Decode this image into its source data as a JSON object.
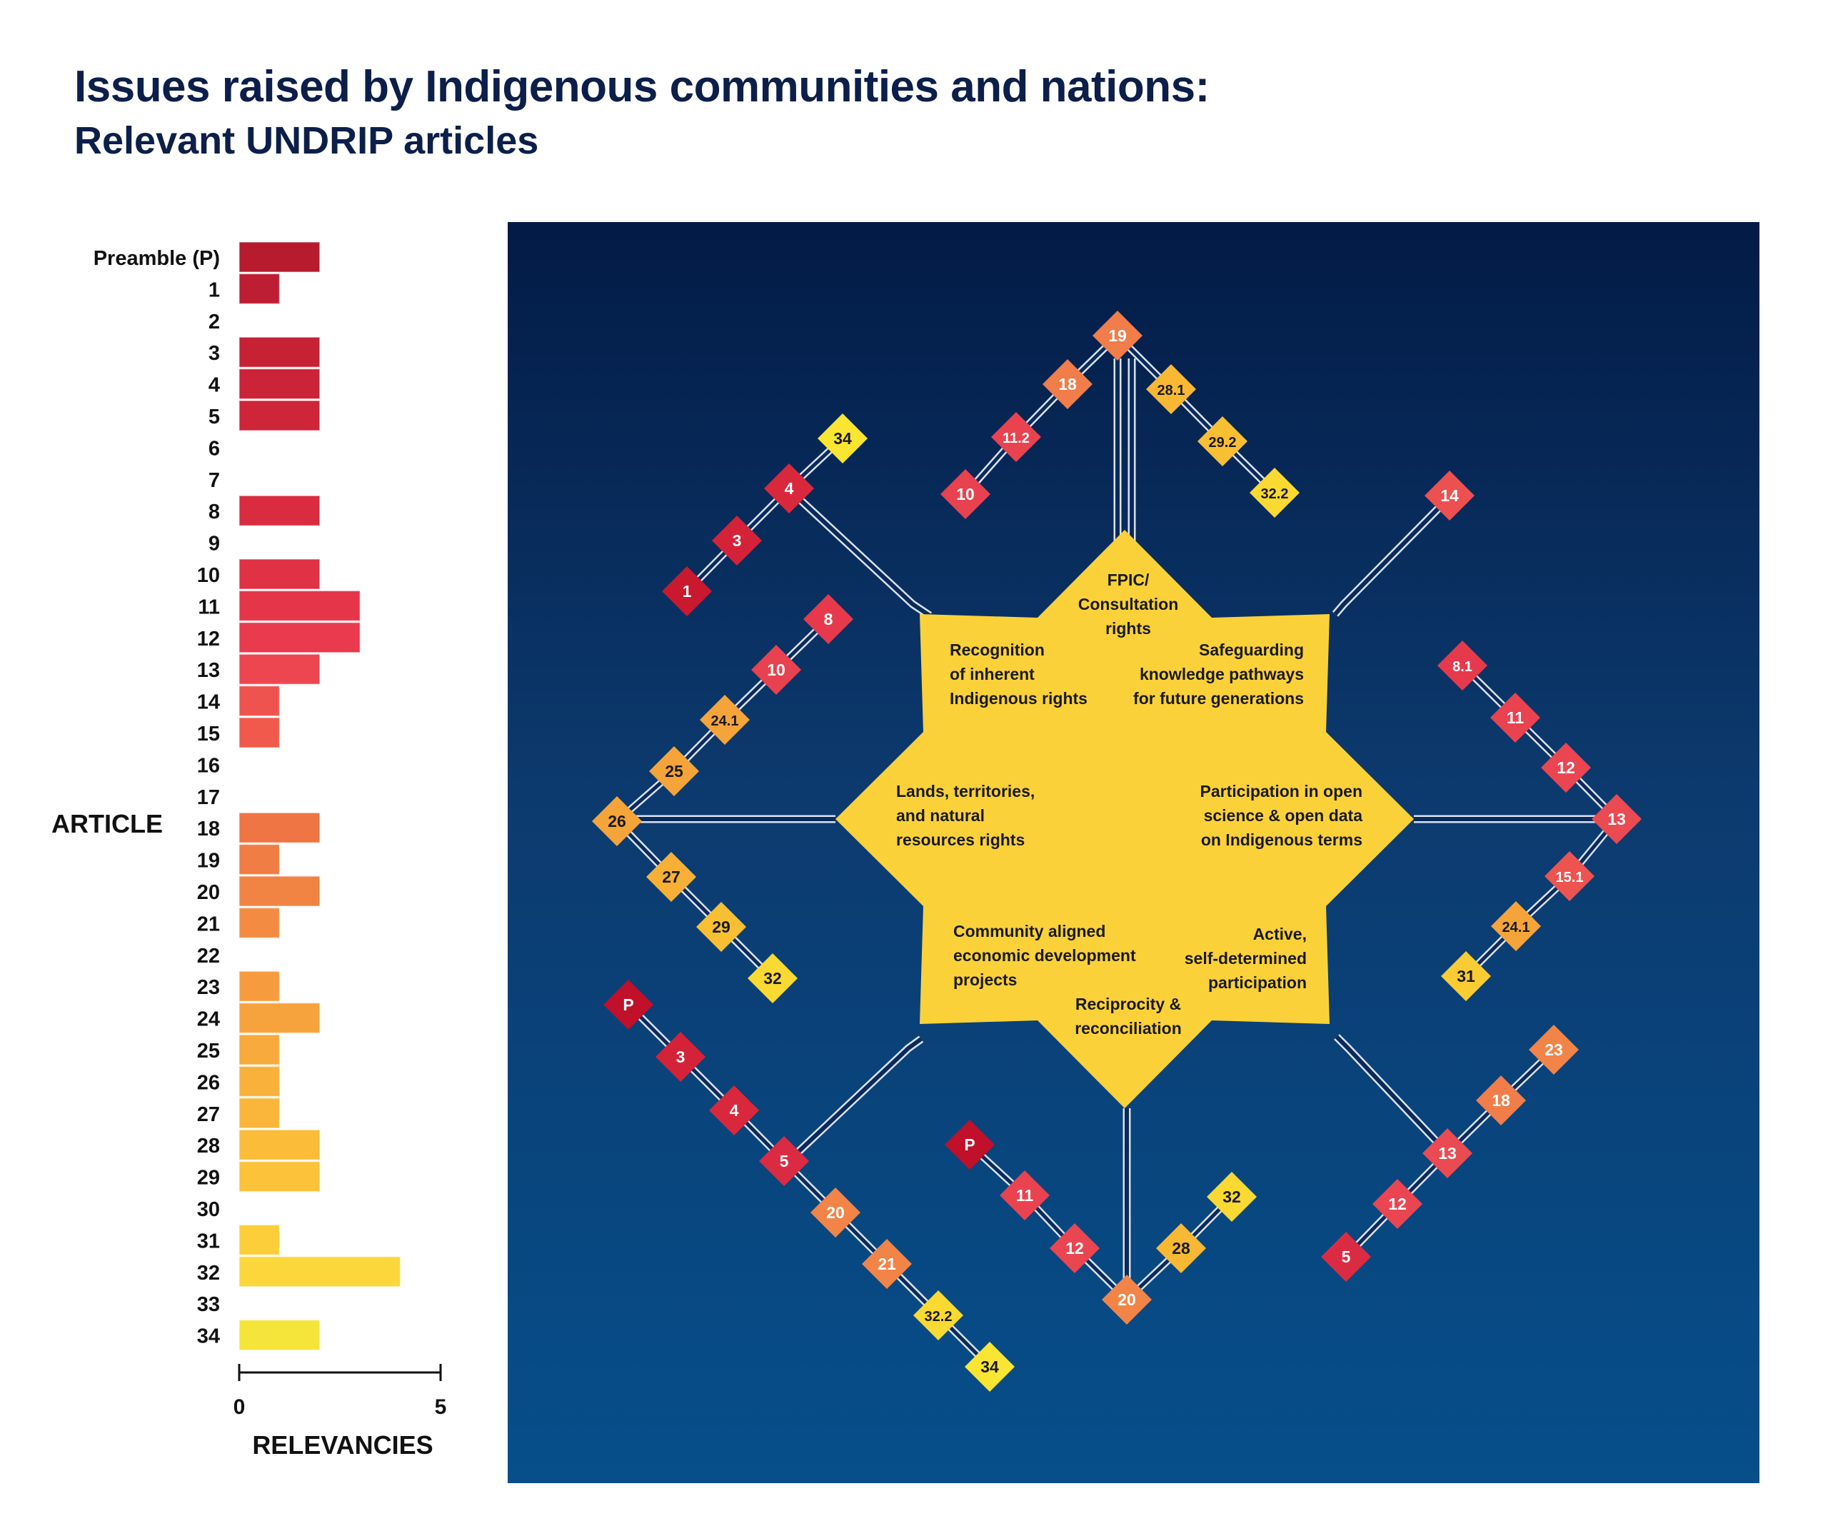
{
  "title": "Issues raised by Indigenous communities and nations:",
  "subtitle": "Relevant UNDRIP articles",
  "chart_data": [
    {
      "type": "bar",
      "orientation": "horizontal",
      "categories": [
        "Preamble (P)",
        "1",
        "2",
        "3",
        "4",
        "5",
        "6",
        "7",
        "8",
        "9",
        "10",
        "11",
        "12",
        "13",
        "14",
        "15",
        "16",
        "17",
        "18",
        "19",
        "20",
        "21",
        "22",
        "23",
        "24",
        "25",
        "26",
        "27",
        "28",
        "29",
        "30",
        "31",
        "32",
        "33",
        "34"
      ],
      "values": [
        2,
        1,
        0,
        2,
        2,
        2,
        0,
        0,
        2,
        0,
        2,
        3,
        3,
        2,
        1,
        1,
        0,
        0,
        2,
        1,
        2,
        1,
        0,
        1,
        2,
        1,
        1,
        1,
        2,
        2,
        0,
        1,
        4,
        0,
        2
      ],
      "colors": [
        "#b71c2e",
        "#be1e33",
        "#c31f35",
        "#c72135",
        "#cb2337",
        "#cf2539",
        "#d2273b",
        "#d4293c",
        "#d92c40",
        "#dd2f43",
        "#e03245",
        "#e53649",
        "#e93b4d",
        "#ed4650",
        "#ef5350",
        "#ef5a4c",
        "#ef6248",
        "#f06a46",
        "#f07544",
        "#f07d43",
        "#f18443",
        "#f38c42",
        "#f59441",
        "#f69c3f",
        "#f7a33d",
        "#f8aa3c",
        "#f9b13b",
        "#f9b63a",
        "#fabc39",
        "#fbc23a",
        "#fcc83a",
        "#fbce3a",
        "#fbd73b",
        "#f9dd3a",
        "#f5e53a"
      ],
      "xlabel": "RELEVANCIES",
      "ylabel": "ARTICLE",
      "xlim": [
        0,
        5
      ],
      "xticks": [
        "0",
        "5"
      ]
    },
    {
      "type": "network",
      "center_color": "#fbd13a",
      "themes": [
        {
          "label": [
            "FPIC/",
            "Consultation",
            "rights"
          ]
        },
        {
          "label": [
            "Safeguarding",
            "knowledge pathways",
            "for future generations"
          ]
        },
        {
          "label": [
            "Participation in open",
            "science & open data",
            "on Indigenous terms"
          ]
        },
        {
          "label": [
            "Active,",
            "self-determined",
            "participation"
          ]
        },
        {
          "label": [
            "Reciprocity &",
            "reconciliation"
          ]
        },
        {
          "label": [
            "Community aligned",
            "economic development",
            "projects"
          ]
        },
        {
          "label": [
            "Lands, territories,",
            "and natural",
            "resources rights"
          ]
        },
        {
          "label": [
            "Recognition",
            "of inherent",
            "Indigenous rights"
          ]
        }
      ],
      "node_colors": {
        "P": "#c0102a",
        "1": "#c8192e",
        "3": "#d42238",
        "4": "#d9283c",
        "5": "#db2b42",
        "8": "#e63a4c",
        "8.1": "#e63a4c",
        "10": "#e8414f",
        "11": "#e8434f",
        "11.2": "#e8434f",
        "12": "#e94652",
        "13": "#ea4a52",
        "14": "#ec5050",
        "15.1": "#ed5450",
        "18": "#f07d4a",
        "19": "#f07d4a",
        "20": "#f28447",
        "21": "#f28447",
        "23": "#f28447",
        "24.1": "#f5a43a",
        "25": "#f5a43a",
        "26": "#f5a43a",
        "27": "#f7b035",
        "28": "#f8b834",
        "28.1": "#f8b834",
        "29": "#f8bf33",
        "29.2": "#f8bf33",
        "31": "#f9cc33",
        "32": "#f9d932",
        "32.2": "#f9d932",
        "34": "#f9e532"
      },
      "branches": [
        {
          "theme": "FPIC/ Consultation rights",
          "nodes": [
            "19",
            "18",
            "11.2",
            "10"
          ]
        },
        {
          "theme": "FPIC/ Consultation rights",
          "nodes": [
            "19",
            "28.1",
            "29.2",
            "32.2"
          ]
        },
        {
          "theme": "Recognition of inherent Indigenous rights",
          "nodes": [
            "34",
            "4",
            "3",
            "1"
          ]
        },
        {
          "theme": "Safeguarding knowledge pathways for future generations",
          "nodes": [
            "14"
          ]
        },
        {
          "theme": "Lands, territories, and natural resources rights",
          "nodes": [
            "8",
            "10",
            "24.1",
            "25",
            "26"
          ]
        },
        {
          "theme": "Lands, territories, and natural resources rights",
          "nodes": [
            "26",
            "27",
            "29",
            "32"
          ]
        },
        {
          "theme": "Participation in open science & open data on Indigenous terms",
          "nodes": [
            "8.1",
            "11",
            "12",
            "13"
          ]
        },
        {
          "theme": "Participation in open science & open data on Indigenous terms",
          "nodes": [
            "13",
            "15.1",
            "24.1",
            "31"
          ]
        },
        {
          "theme": "Community aligned economic development projects",
          "nodes": [
            "P",
            "3",
            "4",
            "5",
            "20",
            "21",
            "32.2",
            "34"
          ]
        },
        {
          "theme": "Reciprocity & reconciliation",
          "nodes": [
            "P",
            "11",
            "12",
            "20"
          ]
        },
        {
          "theme": "Reciprocity & reconciliation",
          "nodes": [
            "20",
            "28",
            "32"
          ]
        },
        {
          "theme": "Active, self-determined participation",
          "nodes": [
            "23",
            "18",
            "13",
            "12",
            "5"
          ]
        }
      ]
    }
  ]
}
